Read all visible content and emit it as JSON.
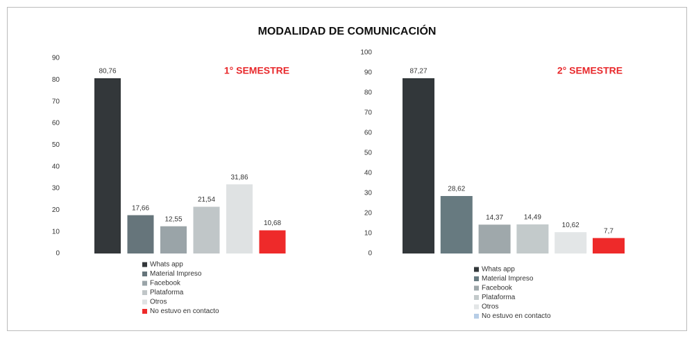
{
  "title": "MODALIDAD DE COMUNICACIÓN",
  "chart_data": [
    {
      "type": "bar",
      "annotation": "1° SEMESTRE",
      "categories": [
        "Whats app",
        "Material Impreso",
        "Facebook",
        "Plataforma",
        "Otros",
        "No estuvo en contacto"
      ],
      "values": [
        80.76,
        17.66,
        12.55,
        21.54,
        31.86,
        10.68
      ],
      "value_labels": [
        "80,76",
        "17,66",
        "12,55",
        "21,54",
        "31,86",
        "10,68"
      ],
      "colors": [
        "#33373a",
        "#66757b",
        "#9aa4a8",
        "#c0c6c8",
        "#dfe2e3",
        "#ee2a2a"
      ],
      "legend_colors": [
        "#33373a",
        "#66757b",
        "#9aa4a8",
        "#c0c6c8",
        "#dfe2e3",
        "#ee2a2a"
      ],
      "ylim": [
        0,
        90
      ],
      "yticks": [
        0,
        10,
        20,
        30,
        40,
        50,
        60,
        70,
        80,
        90
      ]
    },
    {
      "type": "bar",
      "annotation": "2° SEMESTRE",
      "categories": [
        "Whats app",
        "Material Impreso",
        "Facebook",
        "Plataforma",
        "Otros",
        "No estuvo en contacto"
      ],
      "values": [
        87.27,
        28.62,
        14.37,
        14.49,
        10.62,
        7.7
      ],
      "value_labels": [
        "87,27",
        "28,62",
        "14,37",
        "14,49",
        "10,62",
        "7,7"
      ],
      "colors": [
        "#32373a",
        "#677a80",
        "#9fa8ab",
        "#c3cacb",
        "#e3e6e7",
        "#ee2a2a"
      ],
      "legend_colors": [
        "#32373a",
        "#677a80",
        "#9fa8ab",
        "#c3cacb",
        "#e3e6e7",
        "#b7cde6"
      ],
      "ylim": [
        0,
        100
      ],
      "yticks": [
        0,
        10,
        20,
        30,
        40,
        50,
        60,
        70,
        80,
        90,
        100
      ]
    }
  ]
}
